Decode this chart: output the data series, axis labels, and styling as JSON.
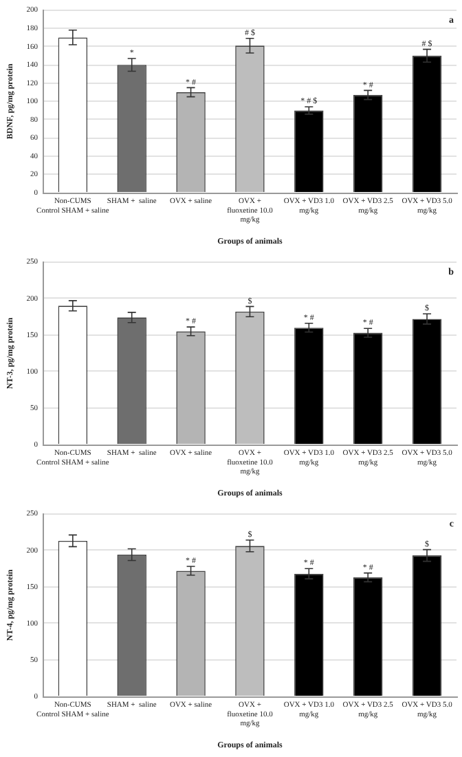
{
  "chart_data": [
    {
      "type": "bar",
      "ylabel": "BDNF, pg/mg protein",
      "xlabel": "Groups of animals",
      "categories": [
        "Non-CUMS\nControl SHAM + saline",
        "SHAM +  saline",
        "OVX + saline",
        "OVX +\nfluoxetine 10.0\nmg/kg",
        "OVX + VD3 1.0\nmg/kg",
        "OVX + VD3 2.5\nmg/kg",
        "OVX + VD3 5.0\nmg/kg"
      ],
      "values": [
        170,
        140,
        110,
        161,
        90,
        107,
        150
      ],
      "errors": [
        8,
        7,
        5,
        8,
        4,
        5,
        7
      ],
      "colors": [
        "#ffffff",
        "#6e6e6e",
        "#b4b4b4",
        "#bdbdbd",
        "#000000",
        "#000000",
        "#000000"
      ],
      "ylim": [
        0,
        200
      ],
      "yticks": [
        0,
        20,
        40,
        60,
        80,
        100,
        120,
        140,
        160,
        180,
        200
      ],
      "grid": "y",
      "annotations": [
        "a",
        {
          "text": "*",
          "x": "SHAM +  saline",
          "y": 147
        },
        {
          "text": "* #",
          "x": "OVX + saline",
          "y": 115
        },
        {
          "text": "# $",
          "x": "OVX +\nfluoxetine 10.0\nmg/kg",
          "y": 169
        },
        {
          "text": "* # $",
          "x": "OVX + VD3 1.0\nmg/kg",
          "y": 94
        },
        {
          "text": "* #",
          "x": "OVX + VD3 2.5\nmg/kg",
          "y": 112
        },
        {
          "text": "# $",
          "x": "OVX + VD3 5.0\nmg/kg",
          "y": 157
        }
      ]
    },
    {
      "type": "bar",
      "ylabel": "NT-3, pg/mg protein",
      "xlabel": "Groups of animals",
      "categories": [
        "Non-CUMS\nControl SHAM + saline",
        "SHAM +  saline",
        "OVX + saline",
        "OVX +\nfluoxetine 10.0\nmg/kg",
        "OVX + VD3 1.0\nmg/kg",
        "OVX + VD3 2.5\nmg/kg",
        "OVX + VD3 5.0\nmg/kg"
      ],
      "values": [
        190,
        174,
        155,
        182,
        160,
        153,
        172
      ],
      "errors": [
        7,
        7,
        6,
        7,
        6,
        6,
        7
      ],
      "colors": [
        "#ffffff",
        "#6e6e6e",
        "#b4b4b4",
        "#bdbdbd",
        "#000000",
        "#000000",
        "#000000"
      ],
      "ylim": [
        0,
        250
      ],
      "yticks": [
        0,
        50,
        100,
        150,
        200,
        250
      ],
      "grid": "y",
      "annotations": [
        "b",
        {
          "text": "* #",
          "x": "OVX + saline",
          "y": 161
        },
        {
          "text": "$",
          "x": "OVX +\nfluoxetine 10.0\nmg/kg",
          "y": 189
        },
        {
          "text": "* #",
          "x": "OVX + VD3 1.0\nmg/kg",
          "y": 166
        },
        {
          "text": "* #",
          "x": "OVX + VD3 2.5\nmg/kg",
          "y": 159
        },
        {
          "text": "$",
          "x": "OVX + VD3 5.0\nmg/kg",
          "y": 179
        }
      ]
    },
    {
      "type": "bar",
      "ylabel": "NT-4, pg/mg protein",
      "xlabel": "Groups of animals",
      "categories": [
        "Non-CUMS\nControl SHAM + saline",
        "SHAM +  saline",
        "OVX + saline",
        "OVX +\nfluoxetine 10.0\nmg/kg",
        "OVX + VD3 1.0\nmg/kg",
        "OVX + VD3 2.5\nmg/kg",
        "OVX + VD3 5.0\nmg/kg"
      ],
      "values": [
        213,
        194,
        172,
        206,
        168,
        163,
        193
      ],
      "errors": [
        8,
        8,
        6,
        8,
        7,
        6,
        8
      ],
      "colors": [
        "#ffffff",
        "#6e6e6e",
        "#b4b4b4",
        "#bdbdbd",
        "#000000",
        "#000000",
        "#000000"
      ],
      "ylim": [
        0,
        250
      ],
      "yticks": [
        0,
        50,
        100,
        150,
        200,
        250
      ],
      "grid": "y",
      "annotations": [
        "c",
        {
          "text": "* #",
          "x": "OVX + saline",
          "y": 178
        },
        {
          "text": "$",
          "x": "OVX +\nfluoxetine 10.0\nmg/kg",
          "y": 214
        },
        {
          "text": "* #",
          "x": "OVX + VD3 1.0\nmg/kg",
          "y": 175
        },
        {
          "text": "* #",
          "x": "OVX + VD3 2.5\nmg/kg",
          "y": 169
        },
        {
          "text": "$",
          "x": "OVX + VD3 5.0\nmg/kg",
          "y": 201
        }
      ]
    }
  ]
}
